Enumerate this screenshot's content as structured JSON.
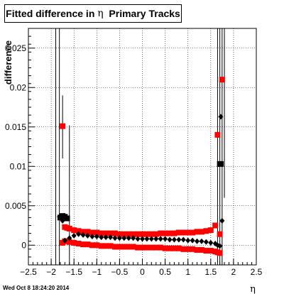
{
  "title": {
    "pre": "Fitted difference in ",
    "symbol": "η",
    "post": "  Primary Tracks"
  },
  "timestamp": "Wed Oct  8 18:24:20 2014",
  "chart_data": {
    "type": "scatter",
    "title": "Fitted difference in η  Primary Tracks",
    "xlabel": "η",
    "ylabel": "difference",
    "xlim": [
      -2.5,
      2.5
    ],
    "ylim": [
      -0.0025,
      0.0275
    ],
    "xticks": [
      -2.5,
      -2,
      -1.5,
      -1,
      -0.5,
      0,
      0.5,
      1,
      1.5,
      2,
      2.5
    ],
    "xtick_labels": [
      "−2.5",
      "−2",
      "−1.5",
      "−1",
      "−0.5",
      "0",
      "0.5",
      "1",
      "1.5",
      "2",
      "2.5"
    ],
    "yticks": [
      0,
      0.005,
      0.01,
      0.015,
      0.02,
      0.025
    ],
    "ytick_labels": [
      "0",
      "0.005",
      "0.01",
      "0.015",
      "0.02",
      "0.025"
    ],
    "grid": true,
    "colors": {
      "red": "#ff0000",
      "black": "#000000"
    },
    "series": [
      {
        "marker": "square",
        "color": "#ff0000",
        "x": [
          -1.75,
          -1.7,
          -1.65,
          -1.6,
          -1.5,
          -1.4,
          -1.3,
          -1.2,
          -1.1,
          -1.0,
          -0.9,
          -0.8,
          -0.7,
          -0.6,
          -0.5,
          -0.4,
          -0.3,
          -0.2,
          -0.1,
          0.0,
          0.1,
          0.2,
          0.3,
          0.4,
          0.5,
          0.6,
          0.7,
          0.8,
          0.9,
          1.0,
          1.1,
          1.2,
          1.3,
          1.4,
          1.5,
          1.6,
          1.65,
          1.7,
          1.75
        ],
        "y": [
          0.0151,
          0.0023,
          0.0022,
          0.0021,
          0.0019,
          0.0018,
          0.0017,
          0.0017,
          0.0016,
          0.0016,
          0.0015,
          0.0015,
          0.0015,
          0.0015,
          0.0014,
          0.0014,
          0.0014,
          0.0014,
          0.0014,
          0.0014,
          0.0014,
          0.0014,
          0.0014,
          0.0015,
          0.0015,
          0.0015,
          0.0015,
          0.0016,
          0.0016,
          0.0016,
          0.0016,
          0.0017,
          0.0017,
          0.0018,
          0.0019,
          0.0025,
          0.014,
          0.0014,
          0.021
        ]
      },
      {
        "marker": "square",
        "color": "#ff0000",
        "x": [
          -1.75,
          -1.7,
          -1.65,
          -1.6,
          -1.5,
          -1.4,
          -1.3,
          -1.2,
          -1.1,
          -1.0,
          -0.9,
          -0.8,
          -0.7,
          -0.6,
          -0.5,
          -0.4,
          -0.3,
          -0.2,
          -0.1,
          0.0,
          0.1,
          0.2,
          0.3,
          0.4,
          0.5,
          0.6,
          0.7,
          0.8,
          0.9,
          1.0,
          1.1,
          1.2,
          1.3,
          1.4,
          1.5,
          1.6,
          1.65,
          1.7
        ],
        "y": [
          0.0003,
          0.0005,
          0.0005,
          0.0004,
          0.0003,
          0.0002,
          0.0001,
          0.0001,
          0.0,
          0.0,
          -0.0001,
          -0.0001,
          -0.0001,
          -0.0002,
          -0.0002,
          -0.0002,
          -0.0002,
          -0.0002,
          -0.0003,
          -0.0003,
          -0.0003,
          -0.0003,
          -0.0003,
          -0.0003,
          -0.0004,
          -0.0004,
          -0.0004,
          -0.0004,
          -0.0005,
          -0.0005,
          -0.0005,
          -0.0006,
          -0.0006,
          -0.0007,
          -0.0007,
          -0.0008,
          -0.0009,
          -0.001
        ]
      },
      {
        "marker": "square",
        "color": "#000000",
        "x": [
          -1.8,
          -1.75,
          -1.7,
          -1.65,
          1.7,
          1.72
        ],
        "y": [
          0.0035,
          0.0037,
          0.0036,
          0.0034,
          0.0103,
          0.0103
        ]
      },
      {
        "marker": "diamond",
        "color": "#000000",
        "x": [
          -1.82,
          -1.75,
          -1.7,
          -1.6,
          -1.5,
          -1.4,
          -1.3,
          -1.2,
          -1.1,
          -1.0,
          -0.9,
          -0.8,
          -0.7,
          -0.6,
          -0.5,
          -0.4,
          -0.3,
          -0.2,
          -0.1,
          0.0,
          0.1,
          0.2,
          0.3,
          0.4,
          0.5,
          0.6,
          0.7,
          0.8,
          0.9,
          1.0,
          1.1,
          1.2,
          1.3,
          1.4,
          1.5,
          1.6,
          1.65,
          1.7,
          1.72,
          1.75
        ],
        "y": [
          0.0036,
          0.0031,
          0.0006,
          0.0009,
          0.0012,
          0.0014,
          0.0013,
          0.0012,
          0.0011,
          0.0011,
          0.001,
          0.001,
          0.001,
          0.0009,
          0.0009,
          0.0009,
          0.0009,
          0.0009,
          0.0008,
          0.0008,
          0.0008,
          0.0008,
          0.0008,
          0.0008,
          0.0008,
          0.0007,
          0.0007,
          0.0007,
          0.0007,
          0.0006,
          0.0006,
          0.0005,
          0.0005,
          0.0004,
          0.0003,
          0.0002,
          0.0,
          -0.0001,
          0.0163,
          0.0031
        ]
      }
    ],
    "error_bars": [
      {
        "x": -1.9,
        "ylow": -0.0025,
        "yhigh": 0.0275,
        "color": "#000000"
      },
      {
        "x": -1.82,
        "ylow": -0.0025,
        "yhigh": 0.0275,
        "color": "#000000"
      },
      {
        "x": -1.75,
        "ylow": 0.011,
        "yhigh": 0.019,
        "color": "#000000"
      },
      {
        "x": -1.6,
        "ylow": -0.0025,
        "yhigh": 0.0152,
        "color": "#000000"
      },
      {
        "x": 1.65,
        "ylow": -0.0025,
        "yhigh": 0.0275,
        "color": "#000000"
      },
      {
        "x": 1.7,
        "ylow": -0.0025,
        "yhigh": 0.0275,
        "color": "#000000"
      },
      {
        "x": 1.75,
        "ylow": -0.0025,
        "yhigh": 0.0275,
        "color": "#000000"
      },
      {
        "x": 1.8,
        "ylow": 0.006,
        "yhigh": 0.0275,
        "color": "#000000"
      }
    ]
  }
}
